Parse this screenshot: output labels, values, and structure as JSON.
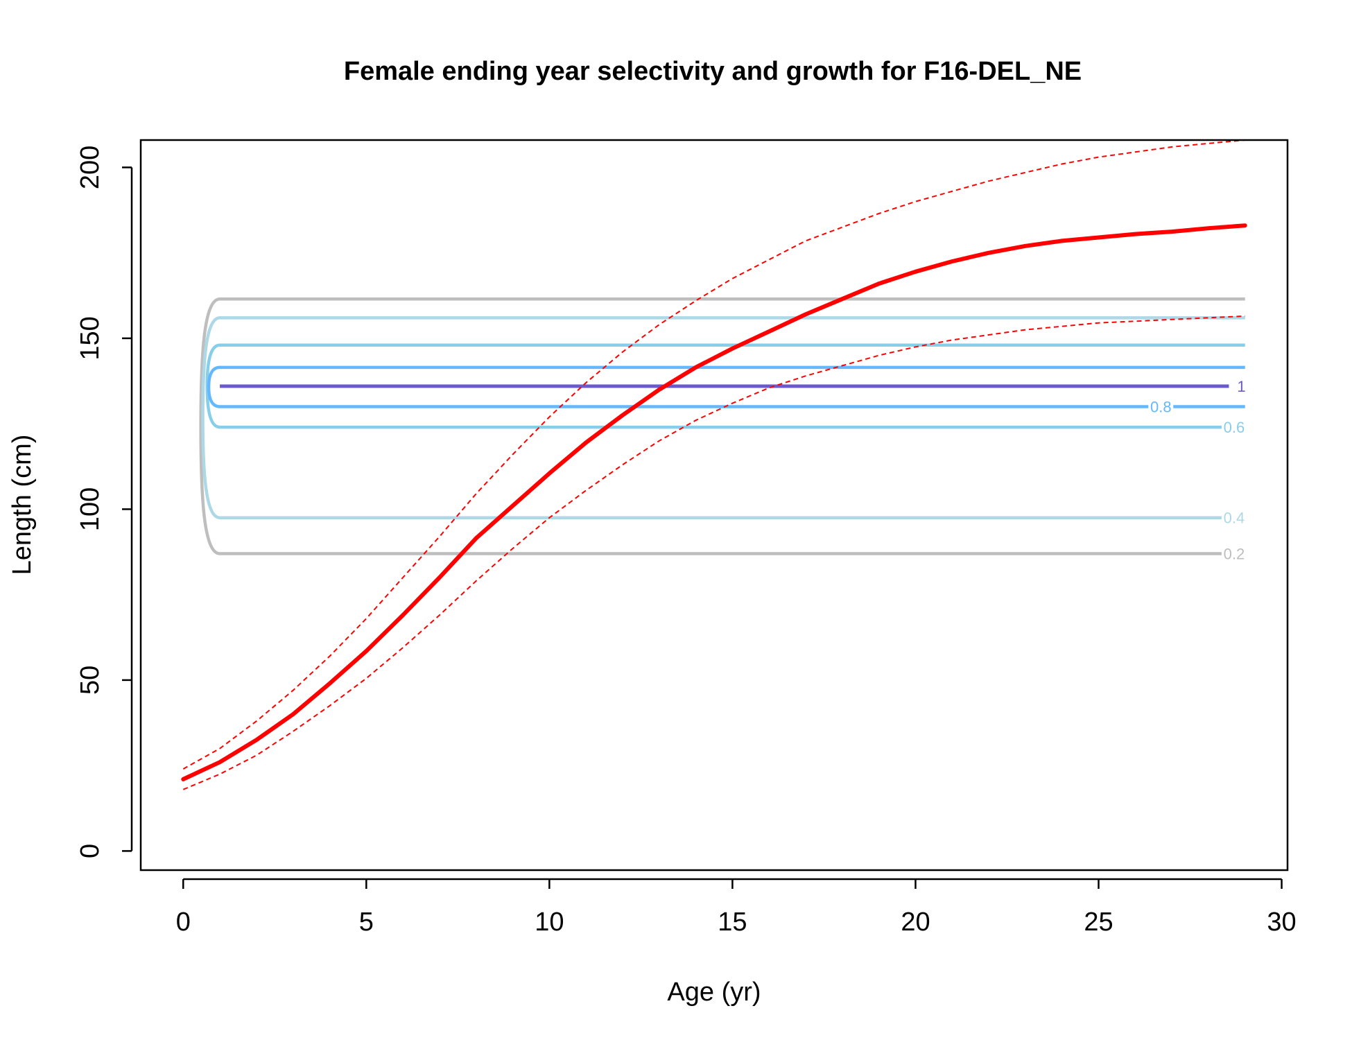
{
  "chart_data": {
    "type": "line",
    "title": "Female ending year selectivity and growth for F16-DEL_NE",
    "xlabel": "Age (yr)",
    "ylabel": "Length (cm)",
    "xlim": [
      -1.16,
      30.16
    ],
    "ylim": [
      -5.6,
      208.0
    ],
    "x_ticks": [
      0,
      5,
      10,
      15,
      20,
      25,
      30
    ],
    "y_ticks": [
      0,
      50,
      100,
      150,
      200
    ],
    "x_tick_labels": [
      "0",
      "5",
      "10",
      "15",
      "20",
      "25",
      "30"
    ],
    "y_tick_labels": [
      "0",
      "50",
      "100",
      "150",
      "200"
    ],
    "grid": false,
    "legend": "none",
    "growth": {
      "x": [
        0,
        1,
        2,
        3,
        4,
        5,
        6,
        7,
        8,
        9,
        10,
        11,
        12,
        13,
        14,
        15,
        16,
        17,
        18,
        19,
        20,
        21,
        22,
        23,
        24,
        25,
        26,
        27,
        28,
        29
      ],
      "mean": [
        21,
        26,
        32.5,
        40,
        49,
        58.5,
        69,
        80,
        91.5,
        101,
        110.5,
        119.5,
        127.5,
        135,
        141.5,
        147,
        152,
        157,
        161.5,
        166,
        169.5,
        172.5,
        175,
        177,
        178.5,
        179.5,
        180.5,
        181.2,
        182.2,
        183
      ],
      "upper": [
        24,
        30,
        38,
        47,
        57,
        68,
        80,
        92,
        104.5,
        116,
        127,
        137,
        146,
        154,
        161,
        167.5,
        173,
        178.5,
        182.5,
        186.5,
        190,
        193,
        196,
        198.5,
        201,
        203,
        204.5,
        206,
        207,
        208
      ],
      "lower": [
        18,
        22.5,
        28,
        35,
        42.5,
        50.5,
        59.5,
        69,
        79,
        88.5,
        97.5,
        105.5,
        113,
        120,
        126,
        131,
        135.5,
        139,
        142,
        145,
        147.5,
        149.5,
        151,
        152.5,
        153.5,
        154.5,
        155,
        155.5,
        156,
        156.5
      ],
      "color": "#ff0000"
    },
    "selectivity_contours": [
      {
        "level": 0.2,
        "label": "0.2",
        "color": "#bebebe",
        "lower": 87,
        "upper": 161.5
      },
      {
        "level": 0.4,
        "label": "0.4",
        "color": "#add8e6",
        "lower": 97.5,
        "upper": 156
      },
      {
        "level": 0.6,
        "label": "0.6",
        "color": "#87ceeb",
        "lower": 124,
        "upper": 148
      },
      {
        "level": 0.8,
        "label": "0.8",
        "color": "#63b8ff",
        "lower": 130,
        "upper": 141.5
      },
      {
        "level": 1,
        "label": "1",
        "color": "#6a5acd",
        "lower": 136,
        "upper": 136
      }
    ],
    "contour_label_ages": {
      "0.2": 28.7,
      "0.4": 28.7,
      "0.6": 28.7,
      "0.8": 26.7,
      "1": 28.9
    },
    "contour_x_start": 1,
    "contour_x_end": 29
  }
}
